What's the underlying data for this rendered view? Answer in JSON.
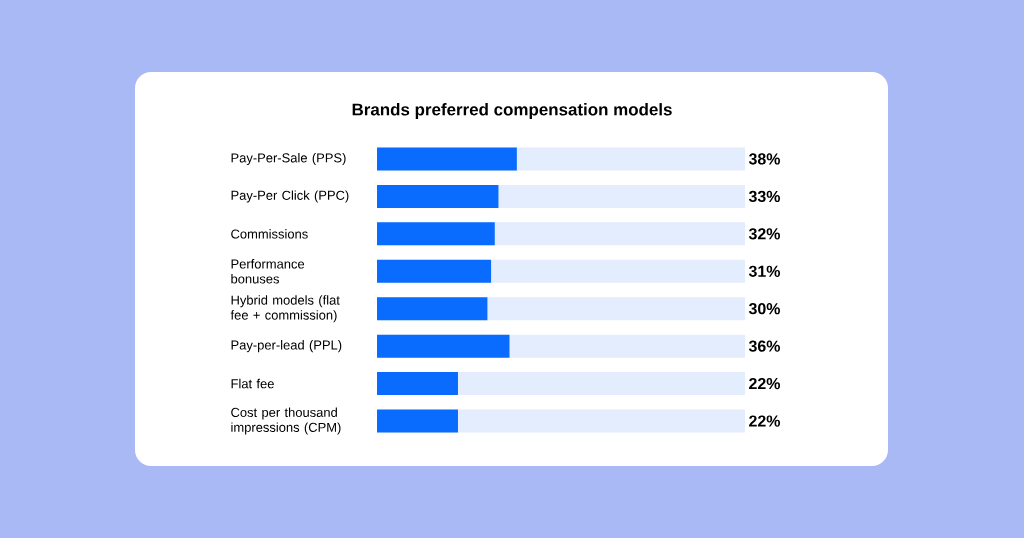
{
  "chart_data": {
    "type": "bar",
    "orientation": "horizontal",
    "title": "Brands preferred compensation models",
    "categories": [
      "Pay-Per-Sale (PPS)",
      "Pay-Per Click (PPC)",
      "Commissions",
      "Performance bonuses",
      "Hybrid models (flat fee + commission)",
      "Pay-per-lead (PPL)",
      "Flat fee",
      "Cost per thousand impressions (CPM)"
    ],
    "values": [
      38,
      33,
      32,
      31,
      30,
      36,
      22,
      22
    ],
    "value_labels": [
      "38%",
      "33%",
      "32%",
      "31%",
      "30%",
      "36%",
      "22%",
      "22%"
    ],
    "color": "#0a6cff",
    "xlim": [
      0,
      100
    ],
    "tick_labels": "y"
  }
}
